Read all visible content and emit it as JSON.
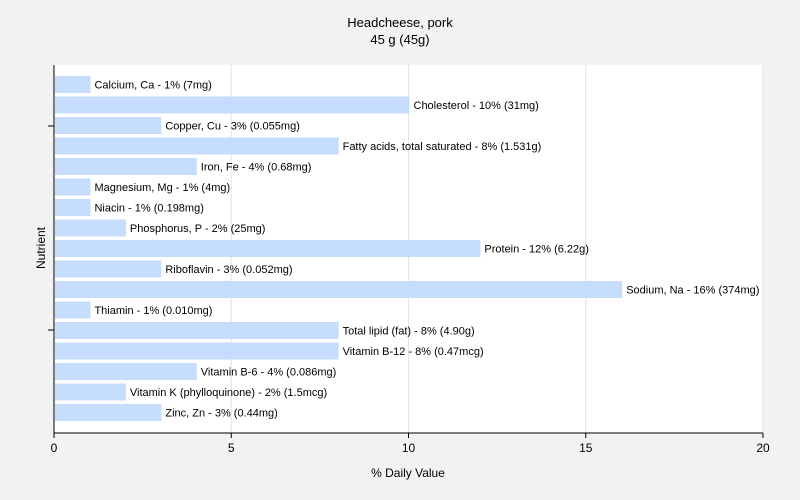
{
  "chart_data": {
    "type": "bar",
    "orientation": "horizontal",
    "title": "Headcheese, pork",
    "subtitle": "45 g (45g)",
    "xlabel": "% Daily Value",
    "ylabel": "Nutrient",
    "xlim": [
      0,
      20
    ],
    "xticks": [
      "0",
      "5",
      "10",
      "15",
      "20"
    ],
    "grid": true,
    "bar_color": "#c5dcfc",
    "categories": [
      "Calcium, Ca",
      "Cholesterol",
      "Copper, Cu",
      "Fatty acids, total saturated",
      "Iron, Fe",
      "Magnesium, Mg",
      "Niacin",
      "Phosphorus, P",
      "Protein",
      "Riboflavin",
      "Sodium, Na",
      "Thiamin",
      "Total lipid (fat)",
      "Vitamin B-12",
      "Vitamin B-6",
      "Vitamin K (phylloquinone)",
      "Zinc, Zn"
    ],
    "values": [
      1,
      10,
      3,
      8,
      4,
      1,
      1,
      2,
      12,
      3,
      16,
      1,
      8,
      8,
      4,
      2,
      3
    ],
    "labels": [
      "Calcium, Ca - 1% (7mg)",
      "Cholesterol - 10% (31mg)",
      "Copper, Cu - 3% (0.055mg)",
      "Fatty acids, total saturated - 8% (1.531g)",
      "Iron, Fe - 4% (0.68mg)",
      "Magnesium, Mg - 1% (4mg)",
      "Niacin - 1% (0.198mg)",
      "Phosphorus, P - 2% (25mg)",
      "Protein - 12% (6.22g)",
      "Riboflavin - 3% (0.052mg)",
      "Sodium, Na - 16% (374mg)",
      "Thiamin - 1% (0.010mg)",
      "Total lipid (fat) - 8% (4.90g)",
      "Vitamin B-12 - 8% (0.47mcg)",
      "Vitamin B-6 - 4% (0.086mg)",
      "Vitamin K (phylloquinone) - 2% (1.5mcg)",
      "Zinc, Zn - 3% (0.44mg)"
    ]
  }
}
